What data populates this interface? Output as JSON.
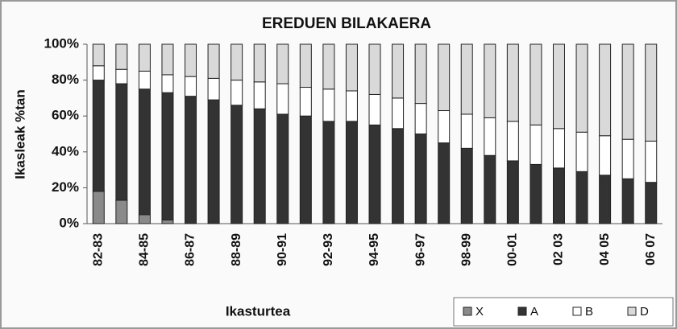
{
  "chart_data": {
    "type": "stacked_bar",
    "title": "EREDUEN BILAKAERA",
    "y_label": "Ikasleak %tan",
    "x_label": "Ikasturtea",
    "categories": [
      "82-83",
      null,
      "84-85",
      null,
      "86-87",
      null,
      "88-89",
      null,
      "90-91",
      null,
      "92-93",
      null,
      "94-95",
      null,
      "96-97",
      null,
      "98-99",
      null,
      "00-01",
      null,
      "02 03",
      null,
      "04 05",
      null,
      "06 07"
    ],
    "series": [
      {
        "name": "X",
        "color": "#8a8a8a",
        "values": [
          18,
          13,
          5,
          2,
          0,
          0,
          0,
          0,
          0,
          0,
          0,
          0,
          0,
          0,
          0,
          0,
          0,
          0,
          0,
          0,
          0,
          0,
          0,
          0,
          0
        ]
      },
      {
        "name": "A",
        "color": "#333333",
        "values": [
          62,
          65,
          70,
          71,
          71,
          69,
          66,
          64,
          61,
          60,
          57,
          57,
          55,
          53,
          50,
          45,
          42,
          38,
          35,
          33,
          31,
          29,
          27,
          25,
          23
        ]
      },
      {
        "name": "B",
        "color": "#ffffff",
        "values": [
          8,
          8,
          10,
          10,
          11,
          12,
          14,
          15,
          17,
          16,
          18,
          17,
          17,
          17,
          17,
          18,
          19,
          21,
          22,
          22,
          22,
          22,
          22,
          22,
          23
        ]
      },
      {
        "name": "D",
        "color": "#d9d9d9",
        "values": [
          12,
          14,
          15,
          17,
          18,
          19,
          20,
          21,
          22,
          24,
          25,
          26,
          28,
          30,
          33,
          37,
          39,
          41,
          43,
          45,
          47,
          49,
          51,
          53,
          54
        ]
      }
    ],
    "ylim": [
      0,
      100
    ],
    "yticks": [
      {
        "value": 0,
        "label": "0%"
      },
      {
        "value": 20,
        "label": "20%"
      },
      {
        "value": 40,
        "label": "40%"
      },
      {
        "value": 60,
        "label": "60%"
      },
      {
        "value": 80,
        "label": "80%"
      },
      {
        "value": 100,
        "label": "100%"
      }
    ],
    "legend": "bottom-right"
  }
}
